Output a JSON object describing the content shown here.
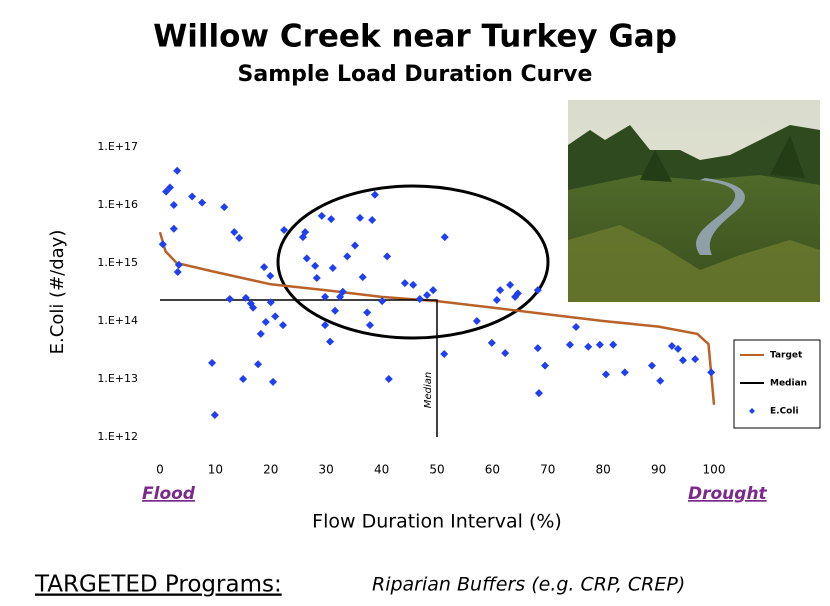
{
  "chart_data": {
    "type": "scatter",
    "title": "Willow Creek near Turkey Gap",
    "subtitle": "Sample Load Duration Curve",
    "xlabel": "Flow Duration Interval (%)",
    "ylabel": "E.Coli (#/day)",
    "annotations": [
      "Flood",
      "Drought",
      "Median"
    ],
    "xlim": [
      0,
      100
    ],
    "xticks": [
      0,
      10,
      20,
      30,
      40,
      50,
      60,
      70,
      80,
      90,
      100
    ],
    "ylim": [
      1000000000000.0,
      1e+17
    ],
    "ylog": true,
    "yticks": [
      {
        "value": 1000000000000.0,
        "label": "1.E+12"
      },
      {
        "value": 10000000000000.0,
        "label": "1.E+13"
      },
      {
        "value": 100000000000000.0,
        "label": "1.E+14"
      },
      {
        "value": 1000000000000000.0,
        "label": "1.E+15"
      },
      {
        "value": 1e+16,
        "label": "1.E+16"
      },
      {
        "value": 1e+17,
        "label": "1.E+17"
      }
    ],
    "grid": false,
    "legend": "right",
    "series": [
      {
        "name": "Target",
        "type": "line",
        "color": "#b8622a",
        "x": [
          0,
          1,
          3,
          10,
          20,
          30,
          40,
          50,
          60,
          70,
          80,
          90,
          97,
          99,
          100
        ],
        "values": [
          3400000000000000.0,
          1600000000000000.0,
          1000000000000000.0,
          700000000000000.0,
          430000000000000.0,
          340000000000000.0,
          260000000000000.0,
          220000000000000.0,
          170000000000000.0,
          130000000000000.0,
          100000000000000.0,
          80000000000000.0,
          60000000000000.0,
          40000000000000.0,
          3600000000000.0
        ]
      },
      {
        "name": "Median",
        "type": "line",
        "color": "#000000",
        "x": [
          0,
          50,
          50
        ],
        "values": [
          230000000000000.0,
          230000000000000.0,
          1000000000000.0
        ]
      },
      {
        "name": "E.Coli",
        "type": "scatter",
        "color": "#1f3ff0",
        "x": [
          0.5,
          1.1,
          1.8,
          2.5,
          3.1,
          2.5,
          3.4,
          3.2,
          5.8,
          7.6,
          9.4,
          9.9,
          11.6,
          12.6,
          13.4,
          14.3,
          15,
          15.5,
          16.4,
          16.8,
          17.7,
          18.2,
          18.8,
          19.1,
          19.9,
          20,
          20.4,
          20.8,
          22.2,
          22.4,
          25.8,
          26.2,
          26.5,
          28,
          28.3,
          29.2,
          29.8,
          29.8,
          30.7,
          30.9,
          31.2,
          31.6,
          32.5,
          33,
          33.8,
          35.2,
          36.1,
          36.6,
          37.4,
          38.3,
          38.8,
          37.9,
          40.1,
          41,
          41.3,
          44.2,
          45.7,
          46.9,
          48.2,
          49.3,
          51.4,
          51.3,
          57.2,
          59.9,
          60.8,
          61.4,
          62.3,
          63.2,
          64.1,
          64.6,
          68.2,
          68.2,
          68.4,
          69.5,
          74,
          75.1,
          77.3,
          79.4,
          80.5,
          81.8,
          83.9,
          88.8,
          90.3,
          92.4,
          93.5,
          94.4,
          96.6,
          99.5
        ],
        "values": [
          2100000000000000.0,
          1.7e+16,
          2e+16,
          1e+16,
          3.9e+16,
          3900000000000000.0,
          930000000000000.0,
          700000000000000.0,
          1.4e+16,
          1.1e+16,
          19000000000000.0,
          2400000000000.0,
          9200000000000000.0,
          240000000000000.0,
          3400000000000000.0,
          2700000000000000.0,
          10000000000000.0,
          250000000000000.0,
          200000000000000.0,
          170000000000000.0,
          18000000000000.0,
          60000000000000.0,
          850000000000000.0,
          96000000000000.0,
          600000000000000.0,
          210000000000000.0,
          8900000000000.0,
          120000000000000.0,
          85000000000000.0,
          3700000000000000.0,
          2800000000000000.0,
          3400000000000000.0,
          1200000000000000.0,
          890000000000000.0,
          550000000000000.0,
          6500000000000000.0,
          260000000000000.0,
          85000000000000.0,
          44000000000000.0,
          5700000000000000.0,
          820000000000000.0,
          150000000000000.0,
          260000000000000.0,
          320000000000000.0,
          1300000000000000.0,
          2000000000000000.0,
          6000000000000000.0,
          570000000000000.0,
          140000000000000.0,
          5500000000000000.0,
          1.5e+16,
          85000000000000.0,
          220000000000000.0,
          1300000000000000.0,
          10000000000000.0,
          450000000000000.0,
          420000000000000.0,
          240000000000000.0,
          280000000000000.0,
          340000000000000.0,
          2800000000000000.0,
          27000000000000.0,
          100000000000000.0,
          42000000000000.0,
          230000000000000.0,
          340000000000000.0,
          28000000000000.0,
          420000000000000.0,
          260000000000000.0,
          300000000000000.0,
          340000000000000.0,
          34000000000000.0,
          5700000000000.0,
          17000000000000.0,
          39000000000000.0,
          79000000000000.0,
          36000000000000.0,
          39000000000000.0,
          12000000000000.0,
          39000000000000.0,
          13000000000000.0,
          17000000000000.0,
          9300000000000.0,
          37000000000000.0,
          33000000000000.0,
          21000000000000.0,
          22000000000000.0,
          13000000000000.0
        ]
      }
    ]
  },
  "footer": {
    "heading": "TARGETED Programs:",
    "programs": "Riparian Buffers (e.g. CRP, CREP)"
  }
}
